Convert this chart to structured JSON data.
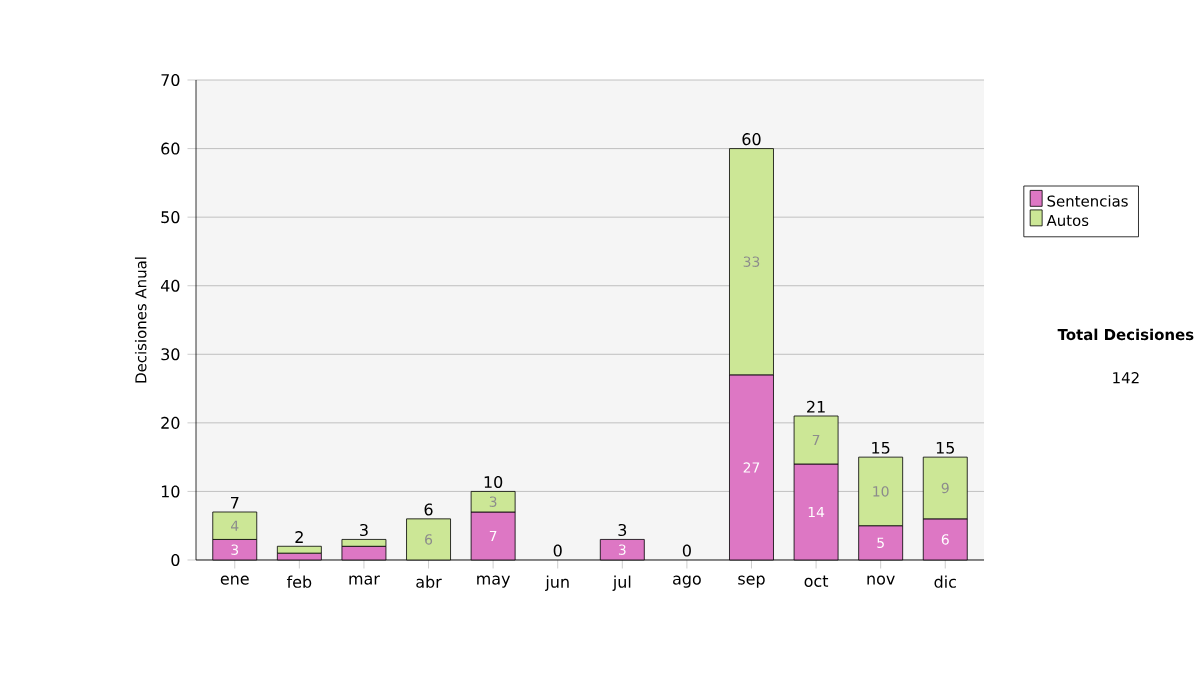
{
  "chart_data": {
    "type": "bar",
    "stacked": true,
    "ylabel": "Decisiones Anual",
    "categories": [
      "ene",
      "feb",
      "mar",
      "abr",
      "may",
      "jun",
      "jul",
      "ago",
      "sep",
      "oct",
      "nov",
      "dic"
    ],
    "series": [
      {
        "name": "Sentencias",
        "color": "#dd77c4",
        "values": [
          3,
          1,
          2,
          0,
          7,
          0,
          3,
          0,
          27,
          14,
          5,
          6
        ],
        "value_labels": [
          "3",
          null,
          null,
          null,
          "7",
          null,
          "3",
          null,
          "27",
          "14",
          "5",
          "6"
        ]
      },
      {
        "name": "Autos",
        "color": "#cce796",
        "values": [
          4,
          1,
          1,
          6,
          3,
          0,
          0,
          0,
          33,
          7,
          10,
          9
        ],
        "value_labels": [
          "4",
          null,
          null,
          "6",
          "3",
          null,
          null,
          null,
          "33",
          "7",
          "10",
          "9"
        ]
      }
    ],
    "totals": [
      "7",
      "2",
      "3",
      "6",
      "10",
      "0",
      "3",
      "0",
      "60",
      "21",
      "15",
      "15"
    ],
    "ylim": [
      0,
      70
    ],
    "yticks": [
      0,
      10,
      20,
      30,
      40,
      50,
      60,
      70
    ],
    "grid": "y",
    "legend": "right",
    "annotations": [
      "**Total Decisiones**",
      "142"
    ]
  }
}
